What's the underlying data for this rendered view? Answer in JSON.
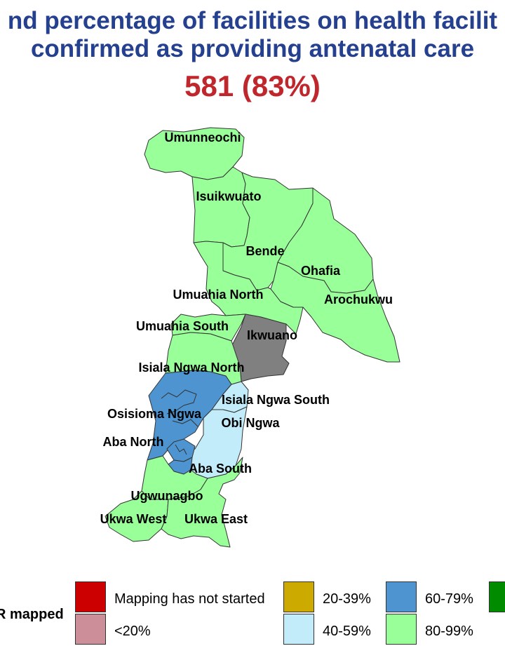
{
  "title": {
    "line1": "nd percentage of facilities on health facilit",
    "line2": "confirmed as providing antenatal care"
  },
  "statistic": "581 (83%)",
  "colors": {
    "title": "#24408e",
    "statistic": "#c0272d",
    "not_started": "#cc0000",
    "lt20": "#cc8f99",
    "p20_39": "#ccaa00",
    "p40_59": "#c3ecfb",
    "p60_79": "#4e94d0",
    "p80_99": "#99ff99",
    "p100": "#008b00",
    "not_mapped": "#808080"
  },
  "lgas": [
    {
      "name": "Umunneochi",
      "category": "80-99%"
    },
    {
      "name": "Isuikwuato",
      "category": "80-99%"
    },
    {
      "name": "Bende",
      "category": "80-99%"
    },
    {
      "name": "Ohafia",
      "category": "80-99%"
    },
    {
      "name": "Arochukwu",
      "category": "80-99%"
    },
    {
      "name": "Umuahia North",
      "category": "80-99%"
    },
    {
      "name": "Umuahia South",
      "category": "80-99%"
    },
    {
      "name": "Ikwuano",
      "category": "not mapped"
    },
    {
      "name": "Isiala Ngwa North",
      "category": "80-99%"
    },
    {
      "name": "Isiala Ngwa South",
      "category": "40-59%"
    },
    {
      "name": "Osisioma Ngwa",
      "category": "60-79%"
    },
    {
      "name": "Obi Ngwa",
      "category": "40-59%"
    },
    {
      "name": "Aba North",
      "category": "60-79%"
    },
    {
      "name": "Aba South",
      "category": "60-79%"
    },
    {
      "name": "Ugwunagbo",
      "category": "80-99%"
    },
    {
      "name": "Ukwa West",
      "category": "80-99%"
    },
    {
      "name": "Ukwa East",
      "category": "80-99%"
    }
  ],
  "legend": {
    "title": "R mapped",
    "items": [
      {
        "label": "Mapping has not started",
        "color": "#cc0000"
      },
      {
        "label": "<20%",
        "color": "#cc8f99"
      },
      {
        "label": "20-39%",
        "color": "#ccaa00"
      },
      {
        "label": "40-59%",
        "color": "#c3ecfb"
      },
      {
        "label": "60-79%",
        "color": "#4e94d0"
      },
      {
        "label": "80-99%",
        "color": "#99ff99"
      },
      {
        "label": "",
        "color": "#008b00"
      }
    ]
  }
}
